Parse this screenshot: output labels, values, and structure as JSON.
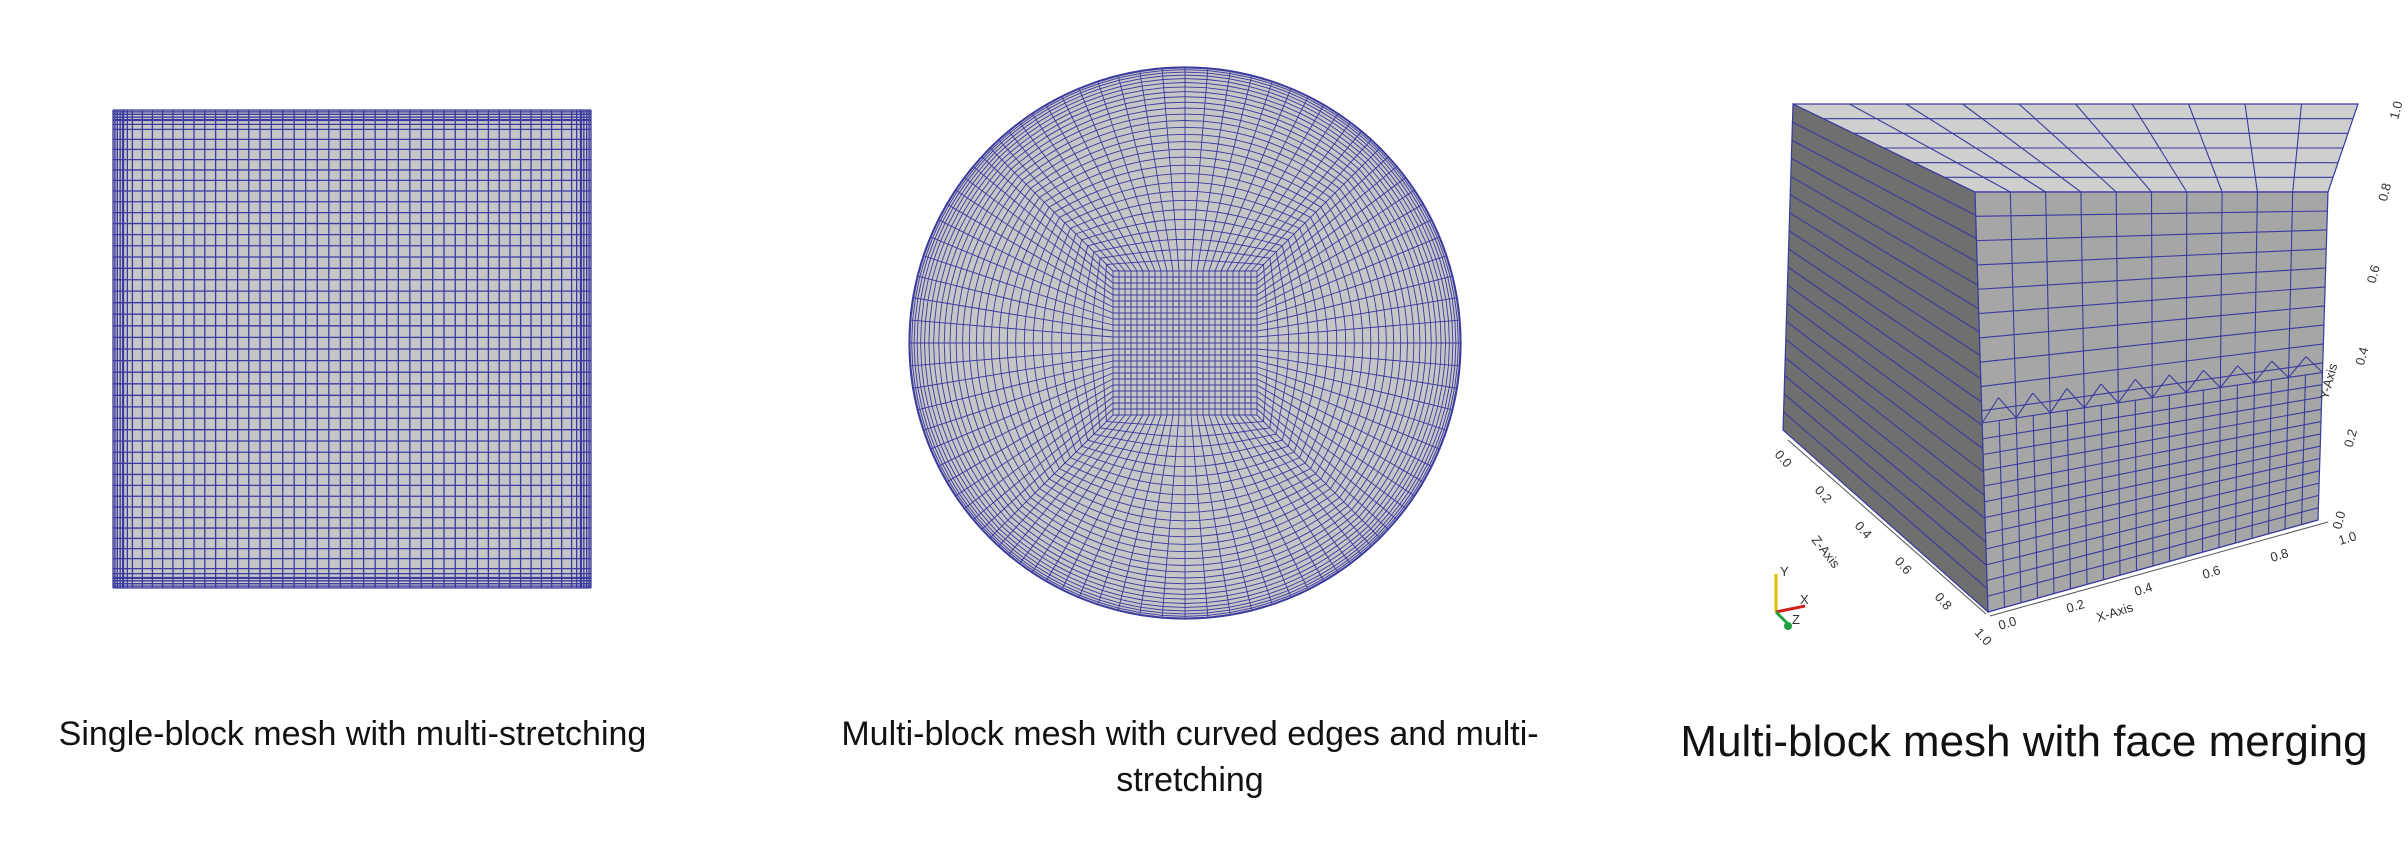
{
  "captions": {
    "single_block": "Single-block mesh with multi-stretching",
    "curved_block": "Multi-block mesh with curved edges and multi-stretching",
    "face_merging": "Multi-block mesh with face merging"
  },
  "axes3d": {
    "x_label": "X-Axis",
    "y_label": "Y-Axis",
    "z_label": "Z-Axis",
    "x_ticks": [
      "0.0",
      "0.2",
      "0.4",
      "0.6",
      "0.8",
      "1.0"
    ],
    "y_ticks": [
      "0.0",
      "0.2",
      "0.4",
      "0.6",
      "0.8",
      "1.0"
    ],
    "z_ticks": [
      "0.0",
      "0.2",
      "0.4",
      "0.6",
      "0.8",
      "1.0"
    ],
    "orientation_labels": {
      "x": "X",
      "y": "Y",
      "z": "Z"
    }
  },
  "colors": {
    "mesh_line": "#3a3aa0",
    "surface": "#c6c6c6",
    "cube_front": "#a6a6a6",
    "cube_top": "#cfcfcf",
    "cube_left": "#6f6f6f",
    "axis_x": "#d22020",
    "axis_y": "#e0c000",
    "axis_z": "#20a040"
  }
}
